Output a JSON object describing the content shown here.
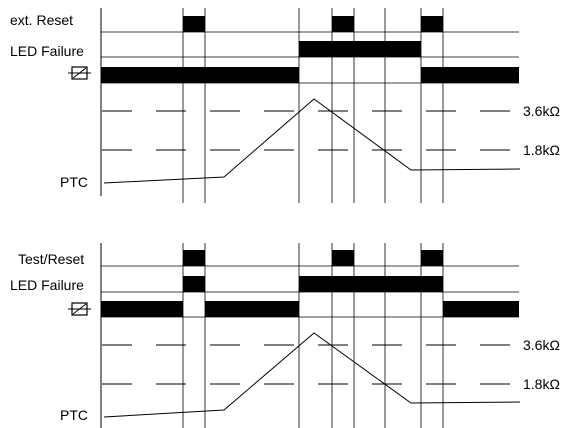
{
  "diagram_top": {
    "signals": {
      "reset": "ext. Reset",
      "led": "LED Failure",
      "ptc": "PTC"
    },
    "levels": {
      "high": "3.6kΩ",
      "low": "1.8kΩ"
    }
  },
  "diagram_bottom": {
    "signals": {
      "reset": "Test/Reset",
      "led": "LED Failure",
      "ptc": "PTC"
    },
    "levels": {
      "high": "3.6kΩ",
      "low": "1.8kΩ"
    }
  }
}
